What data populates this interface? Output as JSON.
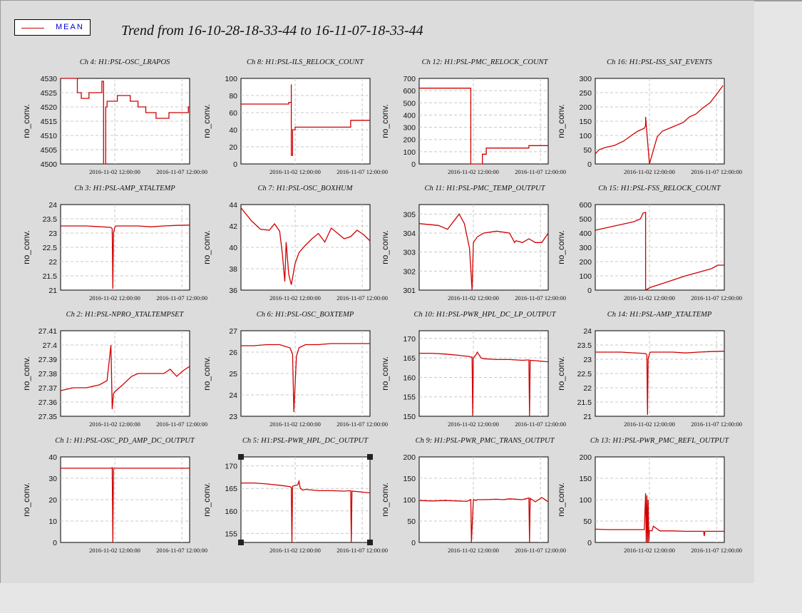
{
  "legend": {
    "label": "MEAN",
    "color": "#d00000"
  },
  "title": "Trend from 16-10-28-18-33-44 to 16-11-07-18-33-44",
  "chart_data": [
    {
      "type": "line",
      "title": "Ch 4: H1:PSL-OSC_LRAPOS",
      "ylabel": "no_conv.",
      "ylim": [
        4500,
        4530
      ],
      "yticks": [
        "4530",
        "4525",
        "4520",
        "4515",
        "4510",
        "4505",
        "4500"
      ],
      "xticks": [
        "2016-11-02 12:00:00",
        "2016-11-07 12:00:00"
      ],
      "x": [
        0,
        1.3,
        1.3,
        1.6,
        1.6,
        2.2,
        2.2,
        3.2,
        3.2,
        3.33,
        3.33,
        3.5,
        3.5,
        3.6,
        3.6,
        4.4,
        4.4,
        5.4,
        5.4,
        6.0,
        6.0,
        6.6,
        6.6,
        7.4,
        7.4,
        8.0,
        8.0,
        8.4,
        8.4,
        8.8,
        8.8,
        9.9,
        9.9,
        10
      ],
      "y": [
        4530,
        4530,
        4525,
        4525,
        4523,
        4523,
        4525,
        4525,
        4529,
        4529,
        4500,
        4500,
        4520,
        4520,
        4522,
        4522,
        4524,
        4524,
        4522,
        4522,
        4520,
        4520,
        4518,
        4518,
        4516,
        4516,
        4516,
        4516,
        4518,
        4518,
        4518,
        4518,
        4520,
        4520
      ]
    },
    {
      "type": "line",
      "title": "Ch 8: H1:PSL-ILS_RELOCK_COUNT",
      "ylabel": "no_conv.",
      "ylim": [
        0,
        100
      ],
      "yticks": [
        "100",
        "80",
        "60",
        "40",
        "20",
        "0"
      ],
      "xticks": [
        "2016-11-02 12:00:00",
        "2016-11-07 12:00:00"
      ],
      "x": [
        0,
        3.7,
        3.7,
        3.9,
        3.9,
        3.9,
        4.0,
        4.0,
        4.2,
        4.2,
        8.5,
        8.5,
        10
      ],
      "y": [
        70,
        70,
        72,
        72,
        93,
        10,
        10,
        40,
        40,
        43,
        43,
        51,
        51
      ]
    },
    {
      "type": "line",
      "title": "Ch 12: H1:PSL-PMC_RELOCK_COUNT",
      "ylabel": "no_conv.",
      "ylim": [
        0,
        700
      ],
      "yticks": [
        "700",
        "600",
        "500",
        "400",
        "300",
        "200",
        "100",
        "0"
      ],
      "xticks": [
        "2016-11-02 12:00:00",
        "2016-11-07 12:00:00"
      ],
      "x": [
        0,
        4.0,
        4.0,
        4.9,
        4.9,
        5.2,
        5.2,
        8.5,
        8.5,
        10
      ],
      "y": [
        620,
        620,
        0,
        0,
        80,
        80,
        130,
        130,
        150,
        150
      ]
    },
    {
      "type": "line",
      "title": "Ch 16: H1:PSL-ISS_SAT_EVENTS",
      "ylabel": "no_conv.",
      "ylim": [
        0,
        300
      ],
      "yticks": [
        "300",
        "250",
        "200",
        "150",
        "100",
        "50",
        "0"
      ],
      "xticks": [
        "2016-11-02 12:00:00",
        "2016-11-07 12:00:00"
      ],
      "x": [
        0,
        0.3,
        0.8,
        1.5,
        2.2,
        2.8,
        3.3,
        3.8,
        3.9,
        3.9,
        4.2,
        4.2,
        4.8,
        5.2,
        6.0,
        6.8,
        7.3,
        7.8,
        8.3,
        8.9,
        9.5,
        9.9
      ],
      "y": [
        35,
        50,
        58,
        65,
        80,
        100,
        115,
        125,
        135,
        165,
        0,
        0,
        95,
        115,
        130,
        145,
        165,
        175,
        195,
        215,
        250,
        275
      ]
    },
    {
      "type": "line",
      "title": "Ch 3: H1:PSL-AMP_XTALTEMP",
      "ylabel": "no_conv.",
      "ylim": [
        21,
        24
      ],
      "yticks": [
        "24",
        "23.5",
        "23",
        "22.5",
        "22",
        "21.5",
        "21"
      ],
      "xticks": [
        "2016-11-02 12:00:00",
        "2016-11-07 12:00:00"
      ],
      "x": [
        0,
        2.0,
        3.9,
        4.0,
        4.05,
        4.1,
        4.2,
        4.3,
        5.0,
        6.0,
        7.0,
        8.0,
        9.0,
        10
      ],
      "y": [
        23.25,
        23.25,
        23.2,
        23.15,
        21.05,
        23.0,
        23.2,
        23.25,
        23.25,
        23.25,
        23.22,
        23.25,
        23.27,
        23.28
      ]
    },
    {
      "type": "line",
      "title": "Ch 7: H1:PSL-OSC_BOXHUM",
      "ylabel": "no_conv.",
      "ylim": [
        36,
        44
      ],
      "yticks": [
        "44",
        "42",
        "40",
        "38",
        "36"
      ],
      "xticks": [
        "2016-11-02 12:00:00",
        "2016-11-07 12:00:00"
      ],
      "x": [
        0,
        0.8,
        1.5,
        2.2,
        2.6,
        3.0,
        3.2,
        3.4,
        3.5,
        3.7,
        3.9,
        4.2,
        4.5,
        5.0,
        5.5,
        6.0,
        6.5,
        7.0,
        7.5,
        8.0,
        8.5,
        9.0,
        9.5,
        10
      ],
      "y": [
        43.7,
        42.5,
        41.7,
        41.6,
        42.2,
        41.5,
        39.5,
        36.8,
        40.5,
        37.5,
        36.5,
        38.5,
        39.5,
        40.2,
        40.8,
        41.3,
        40.5,
        41.8,
        41.3,
        40.8,
        41.0,
        41.6,
        41.2,
        40.6
      ]
    },
    {
      "type": "line",
      "title": "Ch 11: H1:PSL-PMC_TEMP_OUTPUT",
      "ylabel": "no_conv.",
      "ylim": [
        301,
        305.5
      ],
      "yticks": [
        "305",
        "304",
        "303",
        "302",
        "301"
      ],
      "xticks": [
        "2016-11-02 12:00:00",
        "2016-11-07 12:00:00"
      ],
      "x": [
        0,
        1.5,
        2.2,
        3.1,
        3.5,
        3.9,
        4.1,
        4.2,
        4.5,
        5.0,
        6.0,
        7.0,
        7.4,
        7.5,
        8.0,
        8.5,
        9.0,
        9.5,
        10
      ],
      "y": [
        304.5,
        304.4,
        304.2,
        305.0,
        304.5,
        303.2,
        301.0,
        303.5,
        303.8,
        304.0,
        304.1,
        304.0,
        303.5,
        303.6,
        303.5,
        303.7,
        303.5,
        303.5,
        304.0
      ]
    },
    {
      "type": "line",
      "title": "Ch 15: H1:PSL-FSS_RELOCK_COUNT",
      "ylabel": "no_conv.",
      "ylim": [
        0,
        600
      ],
      "yticks": [
        "600",
        "500",
        "400",
        "300",
        "200",
        "100",
        "0"
      ],
      "xticks": [
        "2016-11-02 12:00:00",
        "2016-11-07 12:00:00"
      ],
      "x": [
        0,
        1.0,
        2.0,
        3.0,
        3.5,
        3.7,
        3.9,
        3.9,
        4.3,
        5.0,
        6.0,
        7.0,
        8.0,
        9.0,
        9.5,
        10
      ],
      "y": [
        420,
        440,
        460,
        480,
        500,
        540,
        545,
        0,
        20,
        40,
        70,
        100,
        125,
        150,
        175,
        175
      ]
    },
    {
      "type": "line",
      "title": "Ch 2: H1:PSL-NPRO_XTALTEMPSET",
      "ylabel": "no_conv.",
      "ylim": [
        27.35,
        27.41
      ],
      "yticks": [
        "27.41",
        "27.4",
        "27.39",
        "27.38",
        "27.37",
        "27.36",
        "27.35"
      ],
      "xticks": [
        "2016-11-02 12:00:00",
        "2016-11-07 12:00:00"
      ],
      "x": [
        0,
        1.0,
        2.0,
        3.0,
        3.6,
        3.9,
        4.0,
        4.1,
        4.3,
        4.8,
        5.5,
        6.0,
        7.0,
        8.0,
        8.5,
        9.0,
        9.5,
        10
      ],
      "y": [
        27.368,
        27.37,
        27.37,
        27.372,
        27.375,
        27.4,
        27.355,
        27.366,
        27.368,
        27.372,
        27.378,
        27.38,
        27.38,
        27.38,
        27.383,
        27.378,
        27.382,
        27.385
      ]
    },
    {
      "type": "line",
      "title": "Ch 6: H1:PSL-OSC_BOXTEMP",
      "ylabel": "no_conv.",
      "ylim": [
        23,
        27
      ],
      "yticks": [
        "27",
        "26",
        "25",
        "24",
        "23"
      ],
      "xticks": [
        "2016-11-02 12:00:00",
        "2016-11-07 12:00:00"
      ],
      "x": [
        0,
        1.0,
        2.0,
        3.0,
        3.8,
        4.0,
        4.1,
        4.3,
        4.5,
        5.0,
        6.0,
        7.0,
        8.0,
        9.0,
        10
      ],
      "y": [
        26.3,
        26.3,
        26.35,
        26.35,
        26.2,
        25.9,
        23.2,
        25.8,
        26.2,
        26.35,
        26.35,
        26.4,
        26.4,
        26.4,
        26.4
      ]
    },
    {
      "type": "line",
      "title": "Ch 10: H1:PSL-PWR_HPL_DC_LP_OUTPUT",
      "ylabel": "no_conv.",
      "ylim": [
        150,
        172
      ],
      "yticks": [
        "170",
        "165",
        "160",
        "155",
        "150"
      ],
      "xticks": [
        "2016-11-02 12:00:00",
        "2016-11-07 12:00:00"
      ],
      "x": [
        0,
        1.0,
        2.0,
        3.0,
        3.8,
        4.1,
        4.15,
        4.2,
        4.4,
        4.5,
        4.8,
        5.0,
        6.0,
        7.0,
        8.0,
        8.5,
        8.55,
        8.6,
        9.0,
        10
      ],
      "y": [
        166.2,
        166.2,
        166.0,
        165.7,
        165.4,
        165.2,
        150,
        165,
        165.8,
        166.5,
        165.0,
        164.8,
        164.6,
        164.6,
        164.4,
        164.5,
        150,
        164.4,
        164.3,
        164.0
      ]
    },
    {
      "type": "line",
      "title": "Ch 14: H1:PSL-AMP_XTALTEMP",
      "ylabel": "no_conv.",
      "ylim": [
        21,
        24
      ],
      "yticks": [
        "24",
        "23.5",
        "23",
        "22.5",
        "22",
        "21.5",
        "21"
      ],
      "xticks": [
        "2016-11-02 12:00:00",
        "2016-11-07 12:00:00"
      ],
      "x": [
        0,
        2.0,
        3.9,
        4.0,
        4.05,
        4.1,
        4.2,
        4.3,
        5.0,
        6.0,
        7.0,
        8.0,
        9.0,
        10
      ],
      "y": [
        23.25,
        23.25,
        23.2,
        23.15,
        21.05,
        23.0,
        23.2,
        23.25,
        23.25,
        23.25,
        23.22,
        23.25,
        23.27,
        23.28
      ]
    },
    {
      "type": "line",
      "title": "Ch 1: H1:PSL-OSC_PD_AMP_DC_OUTPUT",
      "ylabel": "no_conv.",
      "ylim": [
        0,
        40
      ],
      "yticks": [
        "40",
        "30",
        "20",
        "10",
        "0"
      ],
      "xticks": [
        "2016-11-02 12:00:00",
        "2016-11-07 12:00:00"
      ],
      "x": [
        0,
        3.9,
        4.0,
        4.05,
        4.1,
        5.0,
        10
      ],
      "y": [
        34.7,
        34.7,
        35.0,
        0,
        34.7,
        34.7,
        34.7
      ]
    },
    {
      "type": "line",
      "title": "Ch 5: H1:PSL-PWR_HPL_DC_OUTPUT",
      "ylabel": "no_conv.",
      "ylim": [
        153,
        172
      ],
      "yticks": [
        "170",
        "165",
        "160",
        "155"
      ],
      "xticks": [
        "2016-11-02 12:00:00",
        "2016-11-07 12:00:00"
      ],
      "x": [
        0,
        1.0,
        2.0,
        3.0,
        3.8,
        3.9,
        3.95,
        4.0,
        4.4,
        4.5,
        4.6,
        4.8,
        5.0,
        6.0,
        7.0,
        8.0,
        8.5,
        8.55,
        8.6,
        9.0,
        10
      ],
      "y": [
        166.2,
        166.2,
        166.0,
        165.7,
        165.4,
        165.2,
        153,
        165.5,
        165.8,
        166.6,
        165,
        164.6,
        164.8,
        164.5,
        164.5,
        164.4,
        164.5,
        153,
        164.4,
        164.3,
        164.0
      ]
    },
    {
      "type": "line",
      "title": "Ch 9: H1:PSL-PWR_PMC_TRANS_OUTPUT",
      "ylabel": "no_conv.",
      "ylim": [
        0,
        200
      ],
      "yticks": [
        "200",
        "150",
        "100",
        "50",
        "0"
      ],
      "xticks": [
        "2016-11-02 12:00:00",
        "2016-11-07 12:00:00"
      ],
      "x": [
        0,
        1.0,
        2.0,
        3.0,
        3.7,
        4.0,
        4.05,
        4.2,
        4.4,
        4.5,
        5.0,
        6.0,
        6.5,
        7.0,
        8.0,
        8.5,
        8.55,
        8.6,
        9.0,
        9.5,
        10
      ],
      "y": [
        98,
        97,
        98,
        97,
        96,
        100,
        0,
        100,
        98,
        100,
        100,
        101,
        100,
        102,
        100,
        104,
        0,
        103,
        95,
        105,
        95
      ]
    },
    {
      "type": "line",
      "title": "Ch 13: H1:PSL-PWR_PMC_REFL_OUTPUT",
      "ylabel": "no_conv.",
      "ylim": [
        0,
        200
      ],
      "yticks": [
        "200",
        "150",
        "100",
        "50",
        "0"
      ],
      "xticks": [
        "2016-11-02 12:00:00",
        "2016-11-07 12:00:00"
      ],
      "x": [
        0,
        1.0,
        2.0,
        3.0,
        3.8,
        3.9,
        3.95,
        4.0,
        4.05,
        4.1,
        4.15,
        4.2,
        4.4,
        4.5,
        5.0,
        6.0,
        7.0,
        8.0,
        8.4,
        8.45,
        8.5,
        9.0,
        10
      ],
      "y": [
        31,
        30,
        30,
        30,
        30,
        115,
        0,
        110,
        0,
        100,
        0,
        28,
        27,
        38,
        27,
        27,
        26,
        26,
        26,
        15,
        26,
        26,
        26
      ]
    }
  ]
}
